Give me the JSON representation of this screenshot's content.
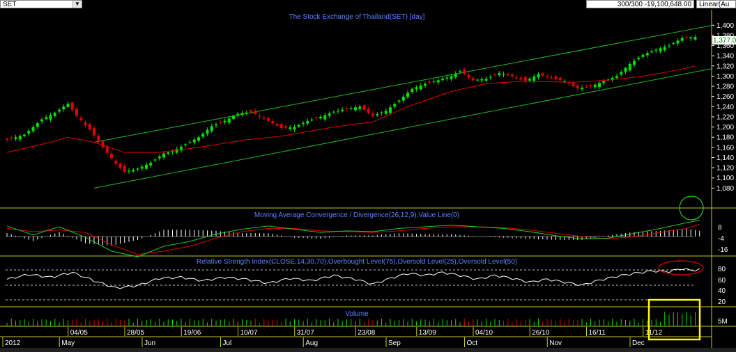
{
  "toolbar": {
    "symbol": "SET",
    "records": "300/300",
    "value_readout": "-19,100,648.00",
    "scale_mode": "Linear(Au"
  },
  "colors": {
    "background": "#000000",
    "panel_border": "#c8c81e",
    "title_text": "#5a82ff",
    "up_candle": "#00e000",
    "down_candle": "#e00000",
    "moving_average": "#e00000",
    "channel_lines": "#22bb22",
    "macd_line": "#22cc22",
    "signal_line": "#e00000",
    "histogram": "#ffffff",
    "rsi_line": "#ffffff",
    "annotation_circle_green": "#22cc22",
    "annotation_circle_red": "#e00000",
    "annotation_box": "#ffff00"
  },
  "chart_data": [
    {
      "type": "candlestick",
      "title": "The Stock Exchange of Thailand(SET) [day]",
      "ylim": [
        1060,
        1410
      ],
      "y_ticks": [
        "1,400",
        "1,380",
        "1,360",
        "1,340",
        "1,320",
        "1,300",
        "1,280",
        "1,260",
        "1,240",
        "1,220",
        "1,200",
        "1,180",
        "1,160",
        "1,140",
        "1,120",
        "1,100",
        "1,080"
      ],
      "last_value_label": "1,377.0",
      "close_points": [
        [
          0,
          1175
        ],
        [
          4,
          1185
        ],
        [
          8,
          1215
        ],
        [
          11,
          1228
        ],
        [
          14,
          1246
        ],
        [
          16,
          1222
        ],
        [
          19,
          1195
        ],
        [
          22,
          1160
        ],
        [
          25,
          1128
        ],
        [
          27,
          1112
        ],
        [
          30,
          1118
        ],
        [
          33,
          1130
        ],
        [
          36,
          1148
        ],
        [
          38,
          1152
        ],
        [
          41,
          1166
        ],
        [
          44,
          1180
        ],
        [
          47,
          1202
        ],
        [
          50,
          1212
        ],
        [
          53,
          1226
        ],
        [
          56,
          1230
        ],
        [
          60,
          1212
        ],
        [
          63,
          1198
        ],
        [
          66,
          1200
        ],
        [
          69,
          1212
        ],
        [
          72,
          1220
        ],
        [
          75,
          1230
        ],
        [
          78,
          1236
        ],
        [
          81,
          1240
        ],
        [
          84,
          1222
        ],
        [
          87,
          1232
        ],
        [
          90,
          1252
        ],
        [
          93,
          1275
        ],
        [
          96,
          1285
        ],
        [
          99,
          1292
        ],
        [
          102,
          1300
        ],
        [
          104,
          1310
        ],
        [
          107,
          1292
        ],
        [
          110,
          1295
        ],
        [
          113,
          1306
        ],
        [
          116,
          1300
        ],
        [
          119,
          1290
        ],
        [
          122,
          1304
        ],
        [
          125,
          1296
        ],
        [
          128,
          1290
        ],
        [
          131,
          1276
        ],
        [
          134,
          1280
        ],
        [
          137,
          1290
        ],
        [
          140,
          1300
        ],
        [
          143,
          1324
        ],
        [
          146,
          1342
        ],
        [
          149,
          1352
        ],
        [
          152,
          1360
        ],
        [
          155,
          1375
        ],
        [
          158,
          1377
        ]
      ],
      "moving_average_points": [
        [
          0,
          1150
        ],
        [
          10,
          1170
        ],
        [
          14,
          1180
        ],
        [
          20,
          1170
        ],
        [
          27,
          1150
        ],
        [
          35,
          1150
        ],
        [
          44,
          1160
        ],
        [
          55,
          1175
        ],
        [
          63,
          1182
        ],
        [
          75,
          1200
        ],
        [
          84,
          1210
        ],
        [
          92,
          1240
        ],
        [
          102,
          1270
        ],
        [
          110,
          1285
        ],
        [
          118,
          1290
        ],
        [
          130,
          1288
        ],
        [
          138,
          1292
        ],
        [
          146,
          1300
        ],
        [
          154,
          1312
        ],
        [
          158,
          1320
        ]
      ],
      "channel_upper": [
        [
          20,
          1170
        ],
        [
          162,
          1400
        ]
      ],
      "channel_lower": [
        [
          20,
          1080
        ],
        [
          162,
          1315
        ]
      ]
    },
    {
      "type": "line",
      "title": "Moving Average Convergence / Divergence(26,12,9),Value Line(0)",
      "y_ticks": [
        "8",
        "-4",
        "-16"
      ],
      "series": [
        {
          "role": "macd",
          "points": [
            [
              0,
              13
            ],
            [
              6,
              2
            ],
            [
              12,
              12
            ],
            [
              18,
              -1
            ],
            [
              24,
              -18
            ],
            [
              30,
              -25
            ],
            [
              36,
              -12
            ],
            [
              42,
              -6
            ],
            [
              48,
              3
            ],
            [
              54,
              9
            ],
            [
              60,
              13
            ],
            [
              66,
              9
            ],
            [
              72,
              5
            ],
            [
              78,
              7
            ],
            [
              84,
              6
            ],
            [
              90,
              10
            ],
            [
              96,
              12
            ],
            [
              102,
              14
            ],
            [
              108,
              12
            ],
            [
              114,
              10
            ],
            [
              120,
              6
            ],
            [
              126,
              1
            ],
            [
              132,
              -3
            ],
            [
              138,
              -2
            ],
            [
              144,
              4
            ],
            [
              150,
              10
            ],
            [
              156,
              17
            ],
            [
              159,
              20
            ]
          ]
        },
        {
          "role": "signal",
          "points": [
            [
              0,
              10
            ],
            [
              6,
              6
            ],
            [
              12,
              8
            ],
            [
              18,
              5
            ],
            [
              24,
              -10
            ],
            [
              30,
              -22
            ],
            [
              36,
              -18
            ],
            [
              42,
              -12
            ],
            [
              48,
              -2
            ],
            [
              54,
              6
            ],
            [
              60,
              10
            ],
            [
              66,
              10
            ],
            [
              72,
              7
            ],
            [
              78,
              6
            ],
            [
              84,
              5
            ],
            [
              90,
              7
            ],
            [
              96,
              10
            ],
            [
              102,
              12
            ],
            [
              108,
              12
            ],
            [
              114,
              11
            ],
            [
              120,
              8
            ],
            [
              126,
              4
            ],
            [
              132,
              0
            ],
            [
              138,
              -3
            ],
            [
              144,
              0
            ],
            [
              150,
              5
            ],
            [
              156,
              10
            ],
            [
              159,
              15
            ]
          ]
        }
      ]
    },
    {
      "type": "line",
      "title": "Relative Strength Index(CLOSE,14,30,70),Overbought Level(75),Oversold Level(25),Oversold Level(50)",
      "y_ticks": [
        "80",
        "60",
        "40",
        "20"
      ],
      "levels": [
        75,
        50,
        25
      ],
      "series": [
        {
          "role": "rsi",
          "points": [
            [
              0,
              58
            ],
            [
              5,
              68
            ],
            [
              10,
              62
            ],
            [
              15,
              72
            ],
            [
              20,
              55
            ],
            [
              25,
              40
            ],
            [
              30,
              45
            ],
            [
              35,
              60
            ],
            [
              40,
              62
            ],
            [
              45,
              55
            ],
            [
              50,
              62
            ],
            [
              55,
              58
            ],
            [
              60,
              50
            ],
            [
              65,
              60
            ],
            [
              70,
              55
            ],
            [
              75,
              66
            ],
            [
              80,
              58
            ],
            [
              84,
              48
            ],
            [
              88,
              60
            ],
            [
              92,
              70
            ],
            [
              96,
              66
            ],
            [
              100,
              72
            ],
            [
              104,
              66
            ],
            [
              108,
              58
            ],
            [
              112,
              66
            ],
            [
              116,
              60
            ],
            [
              120,
              52
            ],
            [
              124,
              58
            ],
            [
              128,
              52
            ],
            [
              132,
              46
            ],
            [
              136,
              56
            ],
            [
              140,
              64
            ],
            [
              144,
              70
            ],
            [
              148,
              75
            ],
            [
              152,
              74
            ],
            [
              155,
              80
            ],
            [
              157,
              76
            ],
            [
              159,
              78
            ]
          ]
        }
      ]
    },
    {
      "type": "bar",
      "title": "Volume",
      "y_ticks": [
        "5M"
      ]
    }
  ],
  "x_axis": {
    "top_row": [
      {
        "label": "04/05",
        "i": 15
      },
      {
        "label": "28/05",
        "i": 28
      },
      {
        "label": "19/06",
        "i": 41
      },
      {
        "label": "10/07",
        "i": 54
      },
      {
        "label": "31/07",
        "i": 67
      },
      {
        "label": "23/08",
        "i": 81
      },
      {
        "label": "13/09",
        "i": 95
      },
      {
        "label": "04/10",
        "i": 108
      },
      {
        "label": "26/10",
        "i": 121
      },
      {
        "label": "16/11",
        "i": 134
      },
      {
        "label": "11/12",
        "i": 147
      }
    ],
    "bottom_row": [
      {
        "label": "2012",
        "i": 0
      },
      {
        "label": "May",
        "i": 13
      },
      {
        "label": "Jun",
        "i": 32
      },
      {
        "label": "Jul",
        "i": 50
      },
      {
        "label": "Aug",
        "i": 69
      },
      {
        "label": "Sep",
        "i": 88
      },
      {
        "label": "Oct",
        "i": 106
      },
      {
        "label": "Nov",
        "i": 125
      },
      {
        "label": "Dec",
        "i": 144
      }
    ]
  }
}
